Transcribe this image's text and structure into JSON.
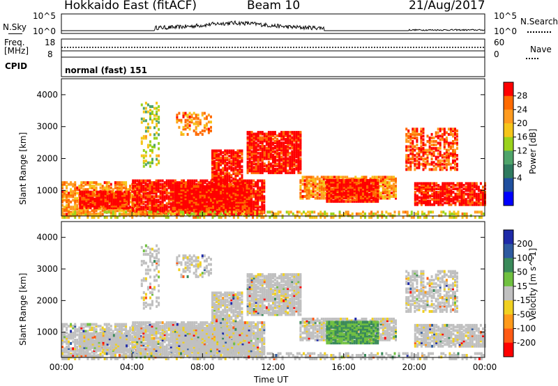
{
  "header": {
    "station": "Hokkaido East (fitACF)",
    "beam": "Beam 10",
    "date": "21/Aug/2017"
  },
  "strip": {
    "nsky": {
      "label": "N.Sky",
      "left_ticks": [
        "10^5",
        "10^0"
      ]
    },
    "nsearch": {
      "label": "N.Search",
      "right_ticks": [
        "10^5",
        "10^0"
      ]
    },
    "freq": {
      "label1": "Freq.",
      "label2": "[MHz]",
      "left_ticks": [
        "18",
        "8"
      ]
    },
    "nave": {
      "label": "Nave",
      "right_ticks": [
        "60",
        "0"
      ]
    },
    "cpid": {
      "label": "CPID",
      "value": "normal (fast) 151"
    }
  },
  "chart_data": [
    {
      "type": "heatmap",
      "name": "power",
      "ylabel": "Slant Range [km]",
      "ylim": [
        200,
        4500
      ],
      "yticks": [
        "4000",
        "3000",
        "2000",
        "1000"
      ],
      "xlim": [
        "00:00",
        "24:00"
      ],
      "colorbar": {
        "label": "Power [dB]",
        "ticks": [
          "28",
          "24",
          "20",
          "16",
          "12",
          "8",
          "4"
        ],
        "colors": [
          "#ff0000",
          "#ff6a00",
          "#ff9b1f",
          "#f5c51a",
          "#9ad21c",
          "#4fa46a",
          "#2f7a5f",
          "#1f4f9e",
          "#0000ff"
        ]
      }
    },
    {
      "type": "heatmap",
      "name": "velocity",
      "ylabel": "Slant Range [km]",
      "ylim": [
        200,
        4500
      ],
      "yticks": [
        "4000",
        "3000",
        "2000",
        "1000"
      ],
      "xlim": [
        "00:00",
        "24:00"
      ],
      "colorbar": {
        "label": "Velocity [m s^-1]",
        "ticks": [
          "200",
          "100",
          "50",
          "15",
          "-15",
          "-50",
          "-100",
          "-200"
        ],
        "colors": [
          "#1e2aa8",
          "#2e5aa0",
          "#3a8a5a",
          "#70c040",
          "#c0c0c0",
          "#f0d020",
          "#ff9a1a",
          "#ff5a14",
          "#ff0000"
        ]
      }
    }
  ],
  "xaxis": {
    "ticks": [
      "00:00",
      "04:00",
      "08:00",
      "12:00",
      "16:00",
      "20:00",
      "00:00"
    ],
    "label": "Time UT"
  }
}
